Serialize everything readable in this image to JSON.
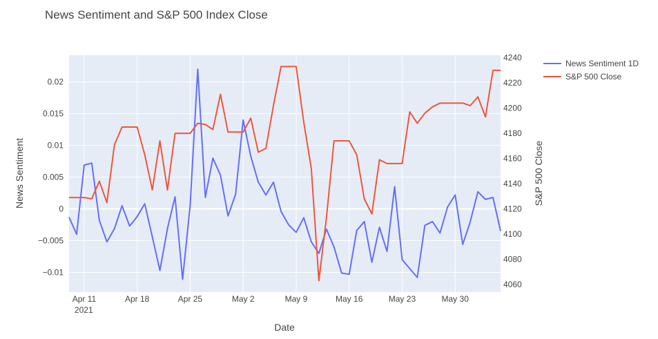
{
  "chart_data": {
    "type": "line",
    "title": "News Sentiment and S&P 500 Index Close",
    "xlabel": "Date",
    "ylabel": "News Sentiment",
    "y2label": "S&P 500 Close",
    "x_ticks": [
      {
        "date": "2021-04-11",
        "label": "Apr 11",
        "sublabel": "2021"
      },
      {
        "date": "2021-04-18",
        "label": "Apr 18",
        "sublabel": ""
      },
      {
        "date": "2021-04-25",
        "label": "Apr 25",
        "sublabel": ""
      },
      {
        "date": "2021-05-02",
        "label": "May 2",
        "sublabel": ""
      },
      {
        "date": "2021-05-09",
        "label": "May 9",
        "sublabel": ""
      },
      {
        "date": "2021-05-16",
        "label": "May 16",
        "sublabel": ""
      },
      {
        "date": "2021-05-23",
        "label": "May 23",
        "sublabel": ""
      },
      {
        "date": "2021-05-30",
        "label": "May 30",
        "sublabel": ""
      }
    ],
    "xlim": [
      "2021-04-09",
      "2021-06-05"
    ],
    "ylim": [
      -0.0131,
      0.0242
    ],
    "y_ticks": [
      -0.01,
      -0.005,
      0,
      0.005,
      0.01,
      0.015,
      0.02
    ],
    "y_tick_labels": [
      "−0.01",
      "−0.005",
      "0",
      "0.005",
      "0.01",
      "0.015",
      "0.02"
    ],
    "y2lim": [
      4054,
      4242
    ],
    "y2_ticks": [
      4060,
      4080,
      4100,
      4120,
      4140,
      4160,
      4180,
      4200,
      4220,
      4240
    ],
    "y2_tick_labels": [
      "4060",
      "4080",
      "4100",
      "4120",
      "4140",
      "4160",
      "4180",
      "4200",
      "4220",
      "4240"
    ],
    "grid": true,
    "legend_position": "top-right",
    "series": [
      {
        "name": "News Sentiment 1D",
        "color": "#636efa",
        "axis": "left",
        "x": [
          "2021-04-09",
          "2021-04-10",
          "2021-04-11",
          "2021-04-12",
          "2021-04-13",
          "2021-04-14",
          "2021-04-15",
          "2021-04-16",
          "2021-04-17",
          "2021-04-18",
          "2021-04-19",
          "2021-04-20",
          "2021-04-21",
          "2021-04-22",
          "2021-04-23",
          "2021-04-24",
          "2021-04-25",
          "2021-04-26",
          "2021-04-27",
          "2021-04-28",
          "2021-04-29",
          "2021-04-30",
          "2021-05-01",
          "2021-05-02",
          "2021-05-03",
          "2021-05-04",
          "2021-05-05",
          "2021-05-06",
          "2021-05-07",
          "2021-05-08",
          "2021-05-09",
          "2021-05-10",
          "2021-05-11",
          "2021-05-12",
          "2021-05-13",
          "2021-05-14",
          "2021-05-15",
          "2021-05-16",
          "2021-05-17",
          "2021-05-18",
          "2021-05-19",
          "2021-05-20",
          "2021-05-21",
          "2021-05-22",
          "2021-05-23",
          "2021-05-24",
          "2021-05-25",
          "2021-05-26",
          "2021-05-27",
          "2021-05-28",
          "2021-05-29",
          "2021-05-30",
          "2021-05-31",
          "2021-06-01",
          "2021-06-02",
          "2021-06-03",
          "2021-06-04",
          "2021-06-05"
        ],
        "values": [
          -0.0013,
          -0.004,
          0.0069,
          0.0072,
          -0.0018,
          -0.0052,
          -0.0031,
          0.0005,
          -0.0027,
          -0.0012,
          0.0008,
          -0.0044,
          -0.0097,
          -0.0031,
          0.0019,
          -0.0111,
          0.0006,
          0.022,
          0.0018,
          0.008,
          0.0053,
          -0.0011,
          0.0023,
          0.014,
          0.0083,
          0.0042,
          0.0022,
          0.0042,
          -0.0004,
          -0.0025,
          -0.0037,
          -0.0014,
          -0.0052,
          -0.007,
          -0.0032,
          -0.006,
          -0.0101,
          -0.0103,
          -0.0034,
          -0.002,
          -0.0084,
          -0.0029,
          -0.0067,
          0.0035,
          -0.008,
          -0.0094,
          -0.0108,
          -0.0026,
          -0.002,
          -0.0038,
          0.0003,
          0.0022,
          -0.0056,
          -0.002,
          0.0027,
          0.0015,
          0.0018,
          -0.0035
        ]
      },
      {
        "name": "S&P 500 Close",
        "color": "#ef553b",
        "axis": "right",
        "x": [
          "2021-04-09",
          "2021-04-10",
          "2021-04-11",
          "2021-04-12",
          "2021-04-13",
          "2021-04-14",
          "2021-04-15",
          "2021-04-16",
          "2021-04-17",
          "2021-04-18",
          "2021-04-19",
          "2021-04-20",
          "2021-04-21",
          "2021-04-22",
          "2021-04-23",
          "2021-04-24",
          "2021-04-25",
          "2021-04-26",
          "2021-04-27",
          "2021-04-28",
          "2021-04-29",
          "2021-04-30",
          "2021-05-01",
          "2021-05-02",
          "2021-05-03",
          "2021-05-04",
          "2021-05-05",
          "2021-05-06",
          "2021-05-07",
          "2021-05-08",
          "2021-05-09",
          "2021-05-10",
          "2021-05-11",
          "2021-05-12",
          "2021-05-13",
          "2021-05-14",
          "2021-05-15",
          "2021-05-16",
          "2021-05-17",
          "2021-05-18",
          "2021-05-19",
          "2021-05-20",
          "2021-05-21",
          "2021-05-22",
          "2021-05-23",
          "2021-05-24",
          "2021-05-25",
          "2021-05-26",
          "2021-05-27",
          "2021-05-28",
          "2021-05-29",
          "2021-05-30",
          "2021-05-31",
          "2021-06-01",
          "2021-06-02",
          "2021-06-03",
          "2021-06-04",
          "2021-06-05"
        ],
        "values": [
          4129,
          4129,
          4129,
          4128,
          4142,
          4125,
          4171,
          4185,
          4185,
          4185,
          4163,
          4135,
          4174,
          4135,
          4180,
          4180,
          4180,
          4188,
          4187,
          4183,
          4211,
          4181,
          4181,
          4181,
          4192,
          4165,
          4168,
          4202,
          4233,
          4233,
          4233,
          4189,
          4152,
          4063,
          4113,
          4174,
          4174,
          4174,
          4163,
          4128,
          4116,
          4159,
          4156,
          4156,
          4156,
          4197,
          4188,
          4196,
          4201,
          4204,
          4204,
          4204,
          4204,
          4202,
          4209,
          4193,
          4230,
          4230
        ]
      }
    ]
  }
}
